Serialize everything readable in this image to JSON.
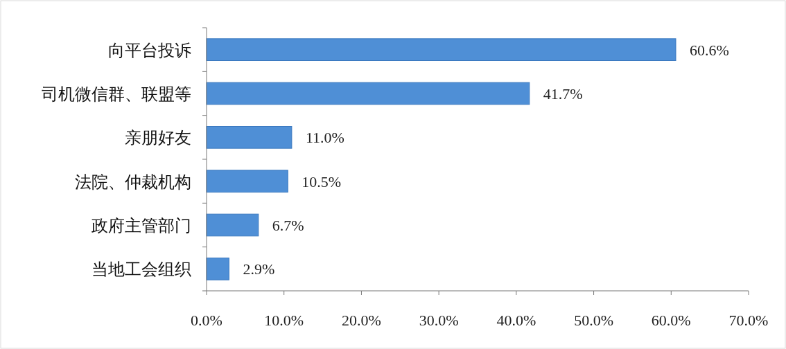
{
  "chart_data": {
    "type": "bar",
    "orientation": "horizontal",
    "categories": [
      "向平台投诉",
      "司机微信群、联盟等",
      "亲朋好友",
      "法院、仲裁机构",
      "政府主管部门",
      "当地工会组织"
    ],
    "values": [
      60.6,
      41.7,
      11.0,
      10.5,
      6.7,
      2.9
    ],
    "value_labels": [
      "60.6%",
      "41.7%",
      "11.0%",
      "10.5%",
      "6.7%",
      "2.9%"
    ],
    "color": "#4f8fd6",
    "xlim": [
      0,
      70
    ],
    "xticks": [
      {
        "value": 0,
        "label": "0.0%"
      },
      {
        "value": 10,
        "label": "10.0%"
      },
      {
        "value": 20,
        "label": "20.0%"
      },
      {
        "value": 30,
        "label": "30.0%"
      },
      {
        "value": 40,
        "label": "40.0%"
      },
      {
        "value": 50,
        "label": "50.0%"
      },
      {
        "value": 60,
        "label": "60.0%"
      },
      {
        "value": 70,
        "label": "70.0%"
      }
    ],
    "grid": false
  }
}
